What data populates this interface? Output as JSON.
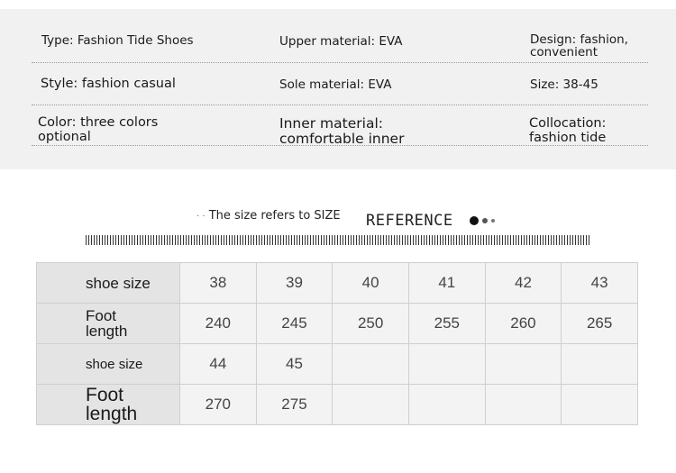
{
  "specs": [
    [
      "Type: Fashion Tide Shoes",
      "Upper material: EVA",
      "Design: fashion, convenient"
    ],
    [
      "Style: fashion casual",
      "Sole material: EVA",
      "Size: 38-45"
    ],
    [
      "Color: three colors optional",
      "Inner material: comfortable inner",
      "Collocation: fashion tide"
    ]
  ],
  "heading": {
    "dots": "· ·",
    "text": "The size refers to SIZE",
    "reference": "REFERENCE"
  },
  "table": {
    "rows": [
      {
        "label": "shoe size",
        "values": [
          "38",
          "39",
          "40",
          "41",
          "42",
          "43"
        ]
      },
      {
        "label": "Foot length",
        "values": [
          "240",
          "245",
          "250",
          "255",
          "260",
          "265"
        ]
      },
      {
        "label": "shoe size",
        "values": [
          "44",
          "45",
          "",
          "",
          "",
          ""
        ]
      },
      {
        "label": "Foot length",
        "values": [
          "270",
          "275",
          "",
          "",
          "",
          ""
        ]
      }
    ]
  }
}
